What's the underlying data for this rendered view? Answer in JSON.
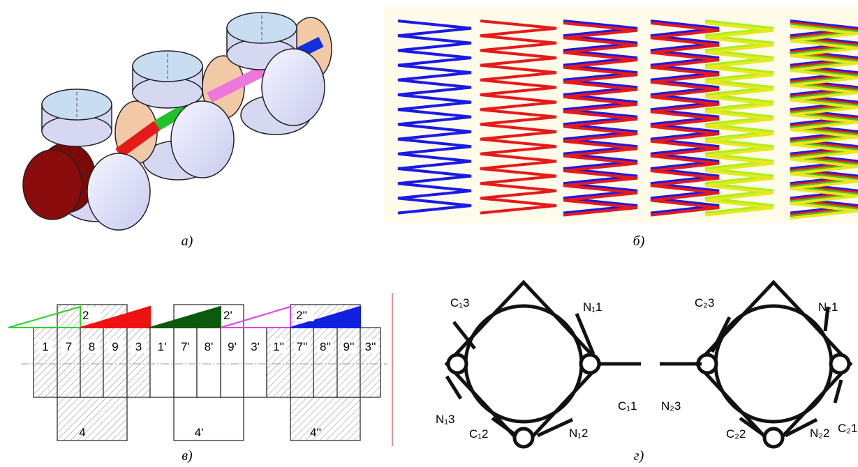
{
  "captions": [
    "а)",
    "б)",
    "в)",
    "г)"
  ],
  "panel_v": {
    "cells": [
      "1",
      "7",
      "8",
      "9",
      "3",
      "1'",
      "7'",
      "8'",
      "9'",
      "3'",
      "1''",
      "7''",
      "8''",
      "9''",
      "3''"
    ],
    "top_labels": [
      "2",
      "2'",
      "2''"
    ],
    "bottom_labels": [
      "4",
      "4'",
      "4''"
    ]
  },
  "panel_g": {
    "labels": [
      "C₁3",
      "N₁1",
      "C₁1",
      "N₁3",
      "C₁2",
      "N₁2",
      "C₂3",
      "N₂1",
      "N₂3",
      "C₂1",
      "C₂2",
      "N₂2"
    ]
  }
}
